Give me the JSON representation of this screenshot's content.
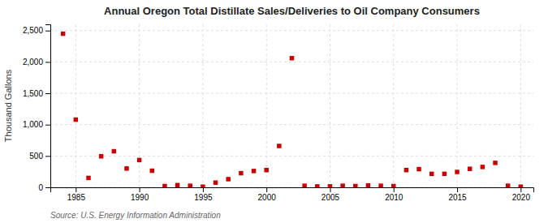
{
  "chart_data": {
    "type": "scatter",
    "title": "Annual Oregon Total Distillate Sales/Deliveries to Oil Company Consumers",
    "ylabel": "Thousand Gallons",
    "annotations": [
      "Source: U.S. Energy Information Administration"
    ],
    "x": [
      1984,
      1985,
      1986,
      1987,
      1988,
      1989,
      1990,
      1991,
      1992,
      1993,
      1994,
      1995,
      1996,
      1997,
      1998,
      1999,
      2000,
      2001,
      2002,
      2003,
      2004,
      2005,
      2006,
      2007,
      2008,
      2009,
      2010,
      2011,
      2012,
      2013,
      2014,
      2015,
      2016,
      2017,
      2018,
      2019,
      2020
    ],
    "values": [
      2450,
      1080,
      150,
      495,
      575,
      300,
      435,
      265,
      20,
      35,
      25,
      10,
      75,
      130,
      225,
      260,
      275,
      660,
      2060,
      25,
      15,
      15,
      25,
      20,
      30,
      25,
      20,
      275,
      290,
      215,
      215,
      245,
      295,
      325,
      390,
      25,
      10
    ],
    "color": "#cc0000",
    "marker": "square",
    "xlim": [
      1983,
      2021
    ],
    "xticks": [
      1985,
      1990,
      1995,
      2000,
      2005,
      2010,
      2015,
      2020
    ],
    "ylim": [
      0,
      2600
    ],
    "yticks": [
      0,
      500,
      {
        "value": 1000,
        "label": "1,000"
      },
      {
        "value": 1500,
        "label": "1,500"
      },
      {
        "value": 2000,
        "label": "2,000"
      },
      {
        "value": 2500,
        "label": "2,500"
      }
    ],
    "grid": true
  }
}
